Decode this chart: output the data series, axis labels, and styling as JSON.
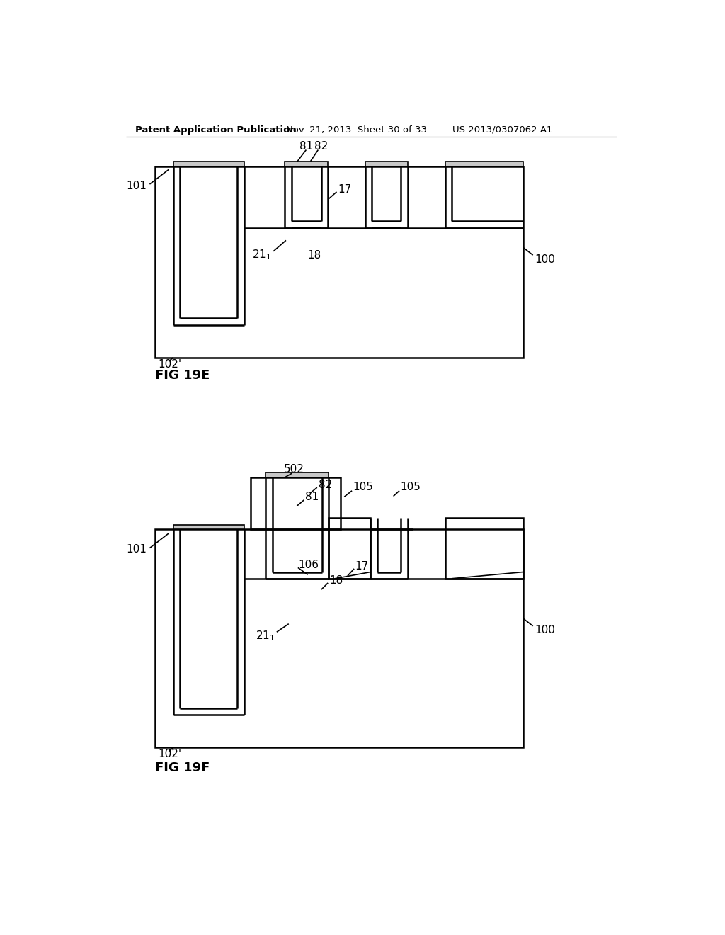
{
  "bg_color": "#ffffff",
  "line_color": "#000000",
  "lw_main": 1.8,
  "lw_thin": 1.2,
  "header_text": "Patent Application Publication",
  "header_date": "Nov. 21, 2013  Sheet 30 of 33",
  "header_patent": "US 2013/0307062 A1",
  "fig1_label": "FIG 19E",
  "fig2_label": "FIG 19F",
  "cap_color": "#c8c8c8"
}
